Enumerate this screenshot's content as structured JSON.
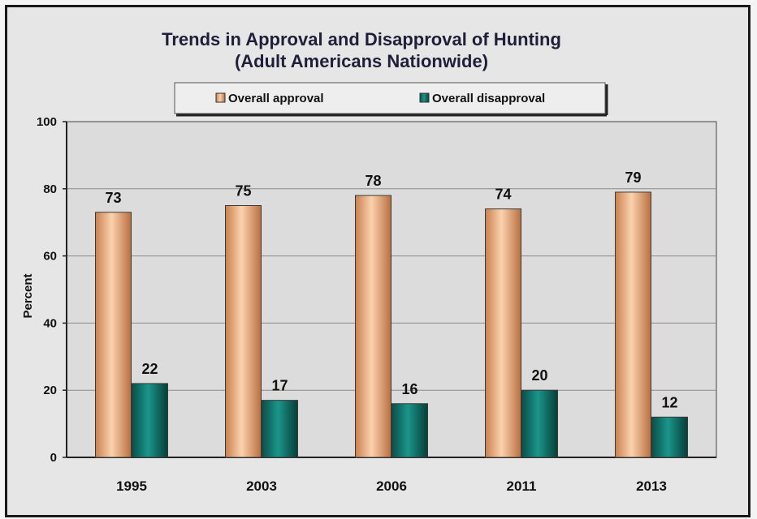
{
  "chart_data": {
    "type": "bar",
    "title": "Trends in Approval and Disapproval of Hunting",
    "subtitle": "(Adult Americans Nationwide)",
    "ylabel": "Percent",
    "xlabel": "",
    "ylim": [
      0,
      100
    ],
    "yticks": [
      0,
      20,
      40,
      60,
      80,
      100
    ],
    "grid": true,
    "legend_position": "top",
    "categories": [
      "1995",
      "2003",
      "2006",
      "2011",
      "2013"
    ],
    "series": [
      {
        "name": "Overall approval",
        "values": [
          73,
          75,
          78,
          74,
          79
        ],
        "color": "#f2b484"
      },
      {
        "name": "Overall disapproval",
        "values": [
          22,
          17,
          16,
          20,
          12
        ],
        "color": "#0f7a70"
      }
    ]
  }
}
